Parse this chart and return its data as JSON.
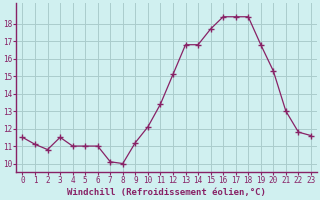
{
  "x": [
    0,
    1,
    2,
    3,
    4,
    5,
    6,
    7,
    8,
    9,
    10,
    11,
    12,
    13,
    14,
    15,
    16,
    17,
    18,
    19,
    20,
    21,
    22,
    23
  ],
  "y": [
    11.5,
    11.1,
    10.8,
    11.5,
    11.0,
    11.0,
    11.0,
    10.1,
    10.0,
    11.2,
    12.1,
    13.4,
    15.1,
    16.8,
    16.8,
    17.7,
    18.4,
    18.4,
    18.4,
    16.8,
    15.3,
    13.0,
    11.8,
    11.6
  ],
  "line_color": "#882266",
  "marker": "+",
  "marker_size": 4,
  "bg_color": "#d0f0f0",
  "grid_color": "#aacccc",
  "tick_color": "#882266",
  "xlabel": "Windchill (Refroidissement éolien,°C)",
  "xlabel_color": "#882266",
  "ylabel_ticks": [
    10,
    11,
    12,
    13,
    14,
    15,
    16,
    17,
    18
  ],
  "xlim": [
    -0.5,
    23.5
  ],
  "ylim": [
    9.5,
    19.2
  ],
  "tick_fontsize": 5.5,
  "xlabel_fontsize": 6.5
}
